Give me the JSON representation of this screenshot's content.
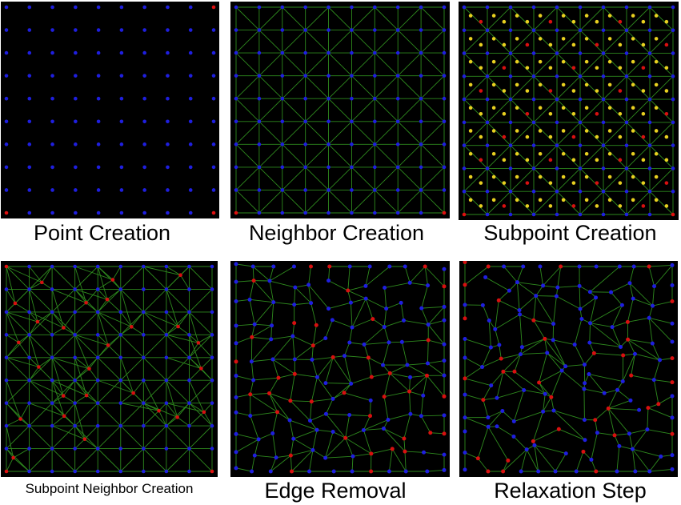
{
  "captions": {
    "point_creation": "Point Creation",
    "neighbor_creation": "Neighbor Creation",
    "subpoint_creation": "Subpoint Creation",
    "subpoint_neighbor_creation": "Subpoint Neighbor Creation",
    "edge_removal": "Edge Removal",
    "relaxation_step": "Relaxation Step"
  },
  "colors": {
    "background": "#000000",
    "point": "#1f1fe0",
    "corner_point": "#e01010",
    "subpoint_yellow": "#e8d020",
    "subpoint_red": "#d81010",
    "edge": "#2e8a1e"
  }
}
